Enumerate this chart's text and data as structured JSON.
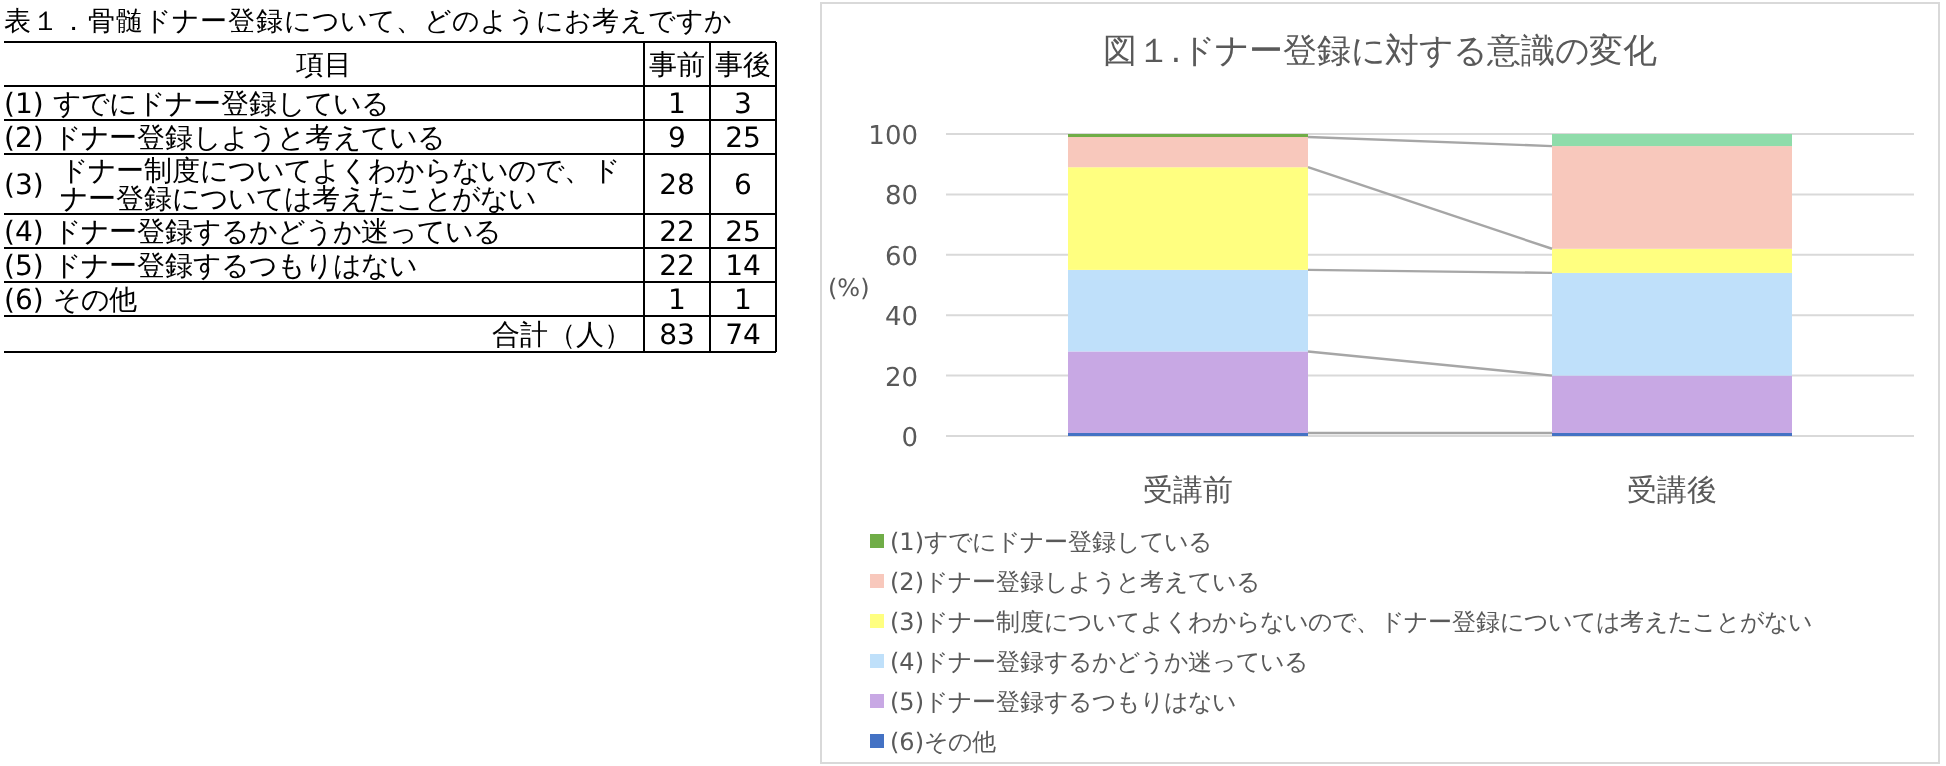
{
  "chart_data": [
    {
      "type": "other",
      "title": "表１．骨髄ドナー登録について、どのようにお考えですか",
      "annotations": [
        "項目",
        "合計（人）"
      ],
      "categories": [
        "(1) すでにドナー登録している",
        "(2) ドナー登録しようと考えている",
        "(3) ドナー制度についてよくわからないので、ドナー登録については考えたことがない",
        "(4) ドナー登録するかどうか迷っている",
        "(5) ドナー登録するつもりはない",
        "(6) その他"
      ],
      "series": [
        {
          "name": "事前",
          "values": [
            1,
            9,
            28,
            22,
            22,
            1
          ]
        },
        {
          "name": "事後",
          "values": [
            3,
            25,
            6,
            25,
            14,
            1
          ]
        }
      ],
      "totals": [
        "83",
        "74"
      ],
      "data_labels": true
    },
    {
      "type": "bar",
      "stacked": true,
      "title": "図１.ドナー登録に対する意識の変化",
      "ylabel": "(%)",
      "categories": [
        "受講前",
        "受講後"
      ],
      "ylim": [
        0,
        100
      ],
      "yticks": [
        0,
        20,
        40,
        60,
        80,
        100
      ],
      "grid": "y",
      "legend": "bottom",
      "series": [
        {
          "name": "(6)その他",
          "color": "#4472c4",
          "values": [
            1,
            1
          ]
        },
        {
          "name": "(5)ドナー登録するつもりはない",
          "color": "#c8a8e4",
          "values": [
            27,
            19
          ]
        },
        {
          "name": "(4)ドナー登録するかどうか迷っている",
          "color": "#bfe0fa",
          "values": [
            27,
            34
          ]
        },
        {
          "name": "(3)ドナー制度についてよくわからないので、ドナー登録については考えたことがない",
          "color": "#ffff80",
          "values": [
            34,
            8
          ]
        },
        {
          "name": "(2)ドナー登録しようと考えている",
          "color": "#f8c8bc",
          "values": [
            10,
            34
          ]
        },
        {
          "name": "(1)すでにドナー登録している",
          "color": "#70ad47",
          "colors": [
            "#70ad47",
            "#8fdcaa"
          ],
          "values": [
            1,
            4
          ]
        }
      ]
    }
  ]
}
